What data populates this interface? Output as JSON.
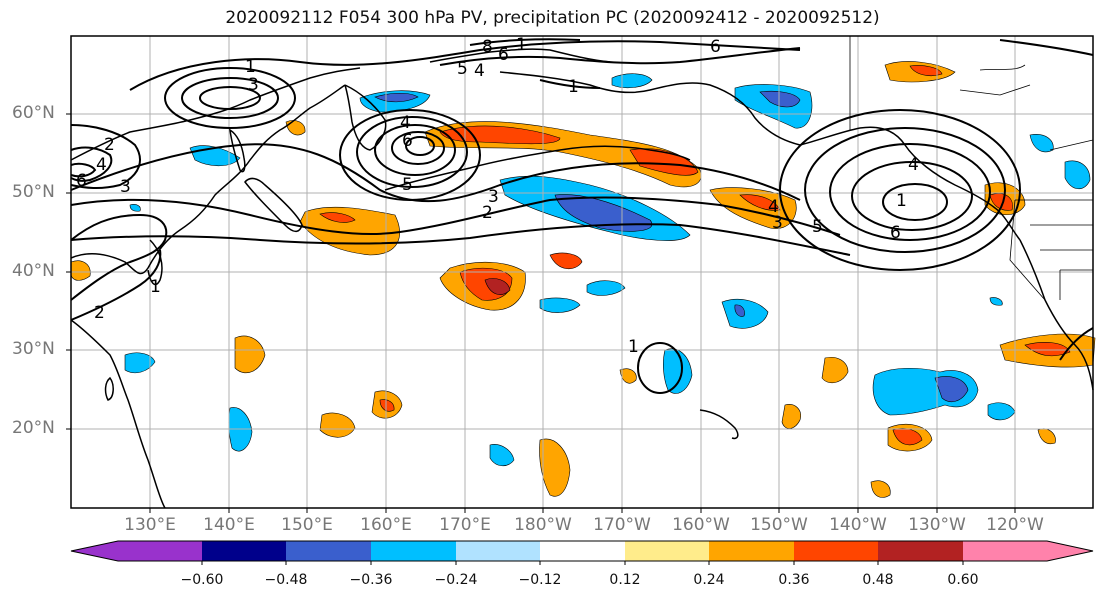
{
  "title": "2020092112 F054 300 hPa PV, precipitation PC (2020092412 - 2020092512)",
  "axes": {
    "lat_labels": [
      "60°N",
      "50°N",
      "40°N",
      "30°N",
      "20°N"
    ],
    "lon_labels": [
      "130°E",
      "140°E",
      "150°E",
      "160°E",
      "170°E",
      "180°W",
      "170°W",
      "160°W",
      "150°W",
      "140°W",
      "130°W",
      "120°W"
    ],
    "grid": true
  },
  "pv_contour_labels": [
    "1",
    "3",
    "2",
    "4",
    "6",
    "8",
    "6",
    "1",
    "6",
    "5",
    "4",
    "1",
    "4",
    "6",
    "3",
    "2",
    "3",
    "5",
    "4",
    "3",
    "5",
    "1",
    "6",
    "4",
    "1",
    "2",
    "1"
  ],
  "colorbar": {
    "tick_labels": [
      "−0.60",
      "−0.48",
      "−0.36",
      "−0.24",
      "−0.12",
      "0.12",
      "0.24",
      "0.36",
      "0.48",
      "0.60"
    ],
    "colors": [
      "#9932CC",
      "#00008B",
      "#3A5FCD",
      "#00BFFF",
      "#B0E2FF",
      "#FFFFFF",
      "#FFEC8B",
      "#FFA500",
      "#FF4500",
      "#B22222",
      "#FF82AB"
    ]
  },
  "colors": {
    "coast": "#000000",
    "grid": "#b0b0b0",
    "contour": "#000000"
  }
}
